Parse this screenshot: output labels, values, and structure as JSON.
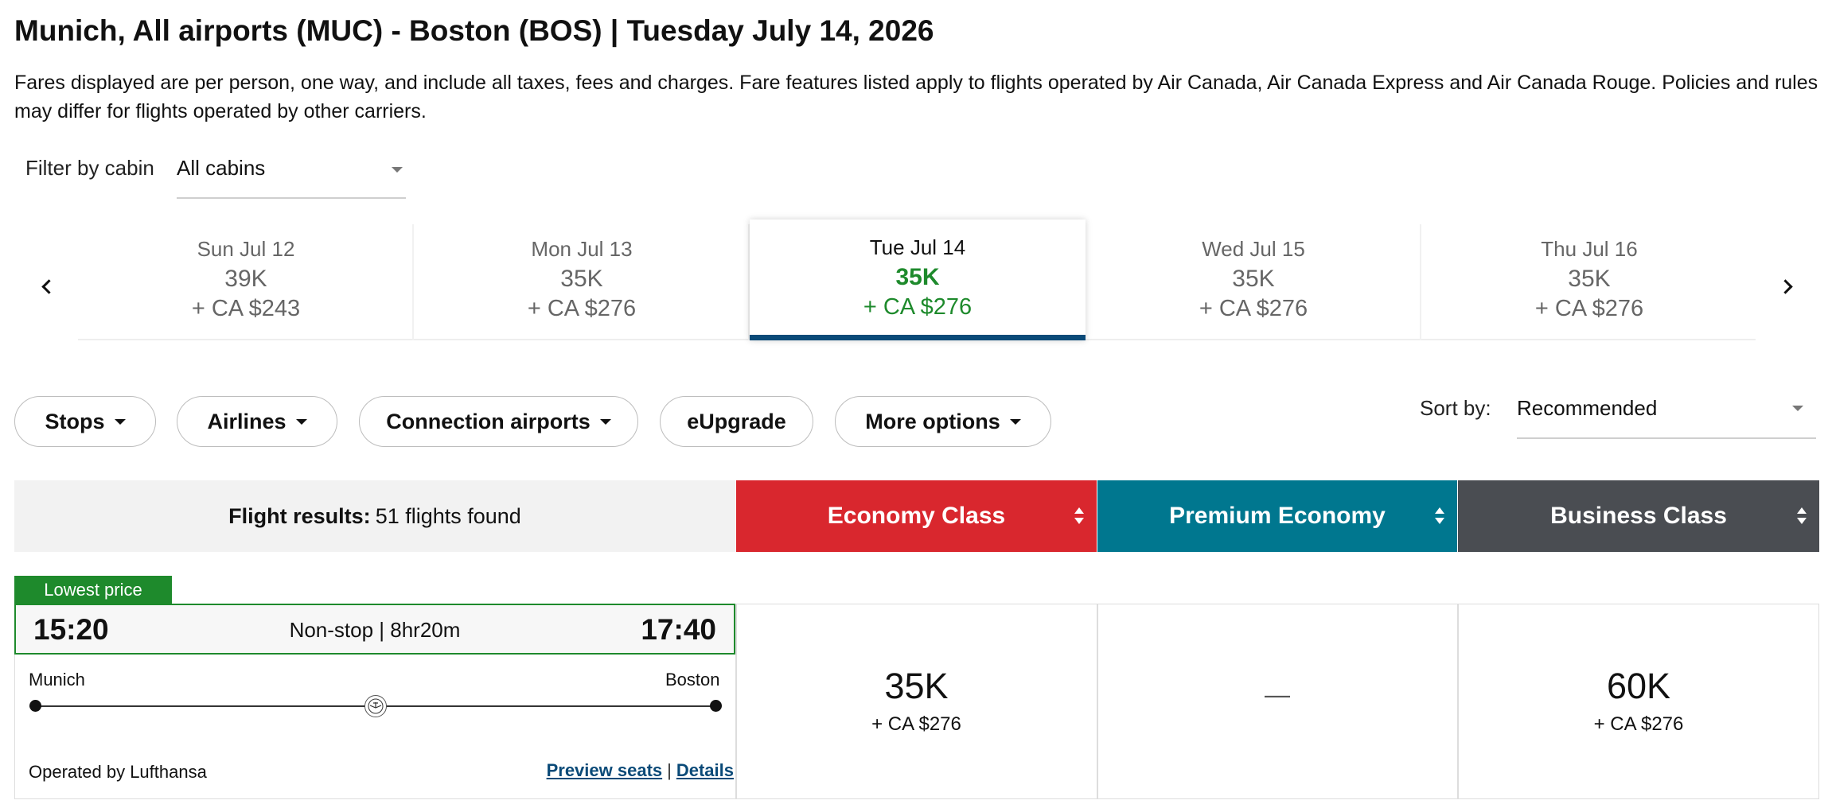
{
  "header": {
    "title": "Munich, All airports (MUC) - Boston (BOS)  |  Tuesday July 14, 2026",
    "disclaimer": "Fares displayed are per person, one way, and include all taxes, fees and charges. Fare features listed apply to flights operated by Air Canada, Air Canada Express and Air Canada Rouge. Policies and rules may differ for flights operated by other carriers."
  },
  "filter": {
    "label": "Filter by cabin",
    "value": "All cabins"
  },
  "dates": [
    {
      "label": "Sun Jul 12",
      "points": "39K",
      "cash": "+ CA $243",
      "active": false
    },
    {
      "label": "Mon Jul 13",
      "points": "35K",
      "cash": "+ CA $276",
      "active": false
    },
    {
      "label": "Tue Jul 14",
      "points": "35K",
      "cash": "+ CA $276",
      "active": true
    },
    {
      "label": "Wed Jul 15",
      "points": "35K",
      "cash": "+ CA $276",
      "active": false
    },
    {
      "label": "Thu Jul 16",
      "points": "35K",
      "cash": "+ CA $276",
      "active": false
    }
  ],
  "filters_bar": {
    "stops": "Stops",
    "airlines": "Airlines",
    "connection_airports": "Connection airports",
    "eupgrade": "eUpgrade",
    "more_options": "More options"
  },
  "sort": {
    "label": "Sort by:",
    "value": "Recommended"
  },
  "results": {
    "label": "Flight results:",
    "count": "51 flights found"
  },
  "cabins": [
    {
      "name": "Economy Class",
      "color": "#d9272e"
    },
    {
      "name": "Premium Economy",
      "color": "#00778f"
    },
    {
      "name": "Business Class",
      "color": "#4a4d52"
    }
  ],
  "flight": {
    "badge": "Lowest price",
    "departure_time": "15:20",
    "arrival_time": "17:40",
    "summary": "Non-stop | 8hr20m",
    "origin": "Munich",
    "destination": "Boston",
    "operated_by": "Operated by Lufthansa",
    "preview_seats": "Preview seats",
    "separator": "|",
    "details": "Details",
    "fares": {
      "economy": {
        "points": "35K",
        "cash": "+ CA $276"
      },
      "premium": {
        "unavailable": "—"
      },
      "business": {
        "points": "60K",
        "cash": "+ CA $276"
      }
    }
  },
  "colors": {
    "accent_green": "#1e8a2c",
    "active_underline": "#0a4a78",
    "link": "#0a4a78"
  }
}
